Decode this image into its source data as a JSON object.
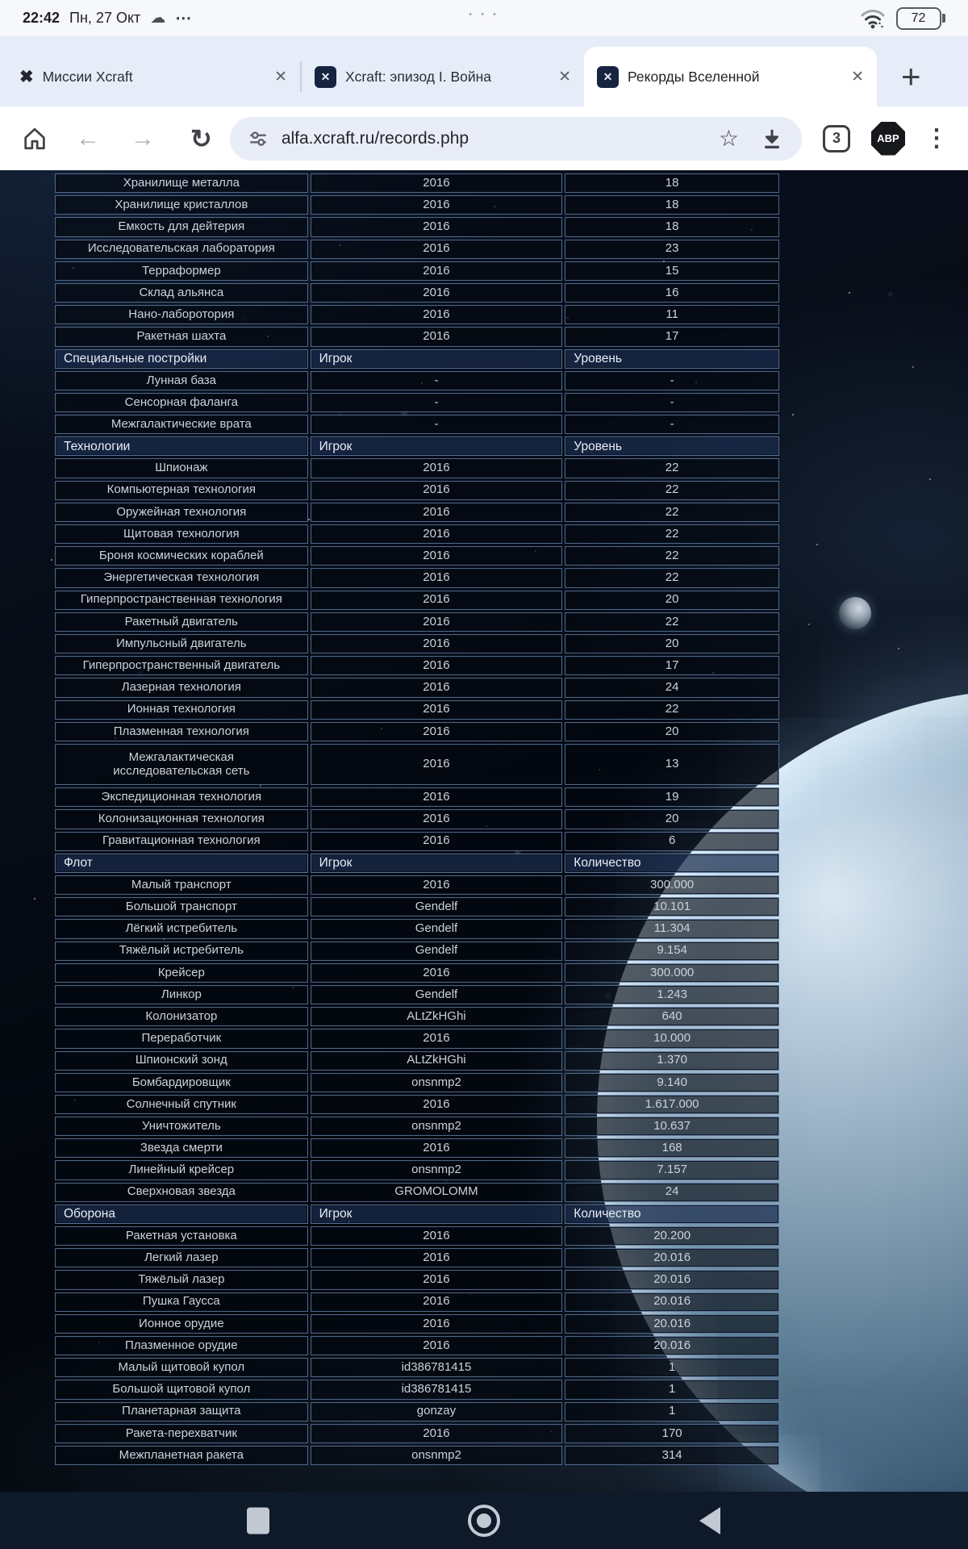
{
  "status_bar": {
    "time": "22:42",
    "date": "Пн, 27 Окт",
    "cloud_icon": "☁",
    "overflow_dots": "⋯",
    "camera_dots": "• • •",
    "battery_percent": "72",
    "icons": [
      "cloud-icon",
      "notification-overflow-icon",
      "wifi-icon",
      "battery-icon"
    ]
  },
  "tab_bar": {
    "tabs": [
      {
        "title": "Миссии Xcraft",
        "favicon": "xcraft-x-logo",
        "active": false
      },
      {
        "title": "Xcraft: эпизод I. Война",
        "favicon": "xcraft-square-logo",
        "active": false
      },
      {
        "title": "Рекорды Вселенной",
        "favicon": "xcraft-square-logo",
        "active": true
      }
    ],
    "close_glyph": "✕",
    "favicon_glyph": "✕",
    "favicon_x_glyph": "✖",
    "new_tab_label": "+"
  },
  "address_bar": {
    "url": "alfa.xcraft.ru/records.php",
    "back_glyph": "←",
    "forward_glyph": "→",
    "reload_glyph": "↻",
    "star_glyph": "☆",
    "tab_count": "3",
    "adblock_label": "ABP",
    "menu_glyph": "⋮",
    "icons": [
      "home-icon",
      "back-icon",
      "forward-icon",
      "reload-icon",
      "tune-icon",
      "star-icon",
      "download-icon",
      "tab-count-box",
      "adblock-icon",
      "menu-kebab-icon"
    ]
  },
  "records_table": {
    "rows": [
      {
        "type": "data",
        "cells": [
          "Хранилище металла",
          "2016",
          "18"
        ]
      },
      {
        "type": "data",
        "cells": [
          "Хранилище кристаллов",
          "2016",
          "18"
        ]
      },
      {
        "type": "data",
        "cells": [
          "Емкость для дейтерия",
          "2016",
          "18"
        ]
      },
      {
        "type": "data",
        "cells": [
          "Исследовательская лаборатория",
          "2016",
          "23"
        ]
      },
      {
        "type": "data",
        "cells": [
          "Терраформер",
          "2016",
          "15"
        ]
      },
      {
        "type": "data",
        "cells": [
          "Склад альянса",
          "2016",
          "16"
        ]
      },
      {
        "type": "data",
        "cells": [
          "Нано-лаборотория",
          "2016",
          "11"
        ]
      },
      {
        "type": "data",
        "cells": [
          "Ракетная шахта",
          "2016",
          "17"
        ]
      },
      {
        "type": "header",
        "cells": [
          "Специальные постройки",
          "Игрок",
          "Уровень"
        ]
      },
      {
        "type": "data",
        "cells": [
          "Лунная база",
          "-",
          "-"
        ]
      },
      {
        "type": "data",
        "cells": [
          "Сенсорная фаланга",
          "-",
          "-"
        ]
      },
      {
        "type": "data",
        "cells": [
          "Межгалактические врата",
          "-",
          "-"
        ]
      },
      {
        "type": "header",
        "cells": [
          "Технологии",
          "Игрок",
          "Уровень"
        ]
      },
      {
        "type": "data",
        "cells": [
          "Шпионаж",
          "2016",
          "22"
        ]
      },
      {
        "type": "data",
        "cells": [
          "Компьютерная технология",
          "2016",
          "22"
        ]
      },
      {
        "type": "data",
        "cells": [
          "Оружейная технология",
          "2016",
          "22"
        ]
      },
      {
        "type": "data",
        "cells": [
          "Щитовая технология",
          "2016",
          "22"
        ]
      },
      {
        "type": "data",
        "cells": [
          "Броня космических кораблей",
          "2016",
          "22"
        ]
      },
      {
        "type": "data",
        "cells": [
          "Энергетическая технология",
          "2016",
          "22"
        ]
      },
      {
        "type": "data",
        "cells": [
          "Гиперпространственная технология",
          "2016",
          "20"
        ]
      },
      {
        "type": "data",
        "cells": [
          "Ракетный двигатель",
          "2016",
          "22"
        ]
      },
      {
        "type": "data",
        "cells": [
          "Импульсный двигатель",
          "2016",
          "20"
        ]
      },
      {
        "type": "data",
        "cells": [
          "Гиперпространственный двигатель",
          "2016",
          "17"
        ]
      },
      {
        "type": "data",
        "cells": [
          "Лазерная технология",
          "2016",
          "24"
        ]
      },
      {
        "type": "data",
        "cells": [
          "Ионная технология",
          "2016",
          "22"
        ]
      },
      {
        "type": "data",
        "cells": [
          "Плазменная технология",
          "2016",
          "20"
        ]
      },
      {
        "type": "data",
        "tall": true,
        "cells": [
          "Межгалактическая\nисследовательская сеть",
          "2016",
          "13"
        ]
      },
      {
        "type": "data",
        "cells": [
          "Экспедиционная технология",
          "2016",
          "19"
        ]
      },
      {
        "type": "data",
        "cells": [
          "Колонизационная технология",
          "2016",
          "20"
        ]
      },
      {
        "type": "data",
        "cells": [
          "Гравитационная технология",
          "2016",
          "6"
        ]
      },
      {
        "type": "header",
        "cells": [
          "Флот",
          "Игрок",
          "Количество"
        ]
      },
      {
        "type": "data",
        "cells": [
          "Малый транспорт",
          "2016",
          "300.000"
        ]
      },
      {
        "type": "data",
        "cells": [
          "Большой транспорт",
          "Gendelf",
          "10.101"
        ]
      },
      {
        "type": "data",
        "cells": [
          "Лёгкий истребитель",
          "Gendelf",
          "11.304"
        ]
      },
      {
        "type": "data",
        "cells": [
          "Тяжёлый истребитель",
          "Gendelf",
          "9.154"
        ]
      },
      {
        "type": "data",
        "cells": [
          "Крейсер",
          "2016",
          "300.000"
        ]
      },
      {
        "type": "data",
        "cells": [
          "Линкор",
          "Gendelf",
          "1.243"
        ]
      },
      {
        "type": "data",
        "cells": [
          "Колонизатор",
          "ALtZkHGhi",
          "640"
        ]
      },
      {
        "type": "data",
        "cells": [
          "Переработчик",
          "2016",
          "10.000"
        ]
      },
      {
        "type": "data",
        "cells": [
          "Шпионский зонд",
          "ALtZkHGhi",
          "1.370"
        ]
      },
      {
        "type": "data",
        "cells": [
          "Бомбардировщик",
          "onsnmp2",
          "9.140"
        ]
      },
      {
        "type": "data",
        "cells": [
          "Солнечный спутник",
          "2016",
          "1.617.000"
        ]
      },
      {
        "type": "data",
        "cells": [
          "Уничтожитель",
          "onsnmp2",
          "10.637"
        ]
      },
      {
        "type": "data",
        "cells": [
          "Звезда смерти",
          "2016",
          "168"
        ]
      },
      {
        "type": "data",
        "cells": [
          "Линейный крейсер",
          "onsnmp2",
          "7.157"
        ]
      },
      {
        "type": "data",
        "cells": [
          "Сверхновая звезда",
          "GROMOLOMM",
          "24"
        ]
      },
      {
        "type": "header",
        "cells": [
          "Оборона",
          "Игрок",
          "Количество"
        ]
      },
      {
        "type": "data",
        "cells": [
          "Ракетная установка",
          "2016",
          "20.200"
        ]
      },
      {
        "type": "data",
        "cells": [
          "Легкий лазер",
          "2016",
          "20.016"
        ]
      },
      {
        "type": "data",
        "cells": [
          "Тяжёлый лазер",
          "2016",
          "20.016"
        ]
      },
      {
        "type": "data",
        "cells": [
          "Пушка Гаусса",
          "2016",
          "20.016"
        ]
      },
      {
        "type": "data",
        "cells": [
          "Ионное орудие",
          "2016",
          "20.016"
        ]
      },
      {
        "type": "data",
        "cells": [
          "Плазменное орудие",
          "2016",
          "20.016"
        ]
      },
      {
        "type": "data",
        "cells": [
          "Малый щитовой купол",
          "id386781415",
          "1"
        ]
      },
      {
        "type": "data",
        "cells": [
          "Большой щитовой купол",
          "id386781415",
          "1"
        ]
      },
      {
        "type": "data",
        "cells": [
          "Планетарная защита",
          "gonzay",
          "1"
        ]
      },
      {
        "type": "data",
        "cells": [
          "Ракета-перехватчик",
          "2016",
          "170"
        ]
      },
      {
        "type": "data",
        "cells": [
          "Межпланетная ракета",
          "onsnmp2",
          "314"
        ]
      }
    ]
  },
  "nav_bar": {
    "icons": [
      "recents-square-icon",
      "home-circle-icon",
      "back-triangle-icon"
    ]
  },
  "colors": {
    "chrome_strip_bg": "#e6ecf8",
    "omnibox_bg": "#e8edf7",
    "table_border": "#7da0d2",
    "table_header_bg": "#1a2d4e",
    "nav_bar_bg": "#0e1929",
    "space_bg": "#04070d"
  }
}
